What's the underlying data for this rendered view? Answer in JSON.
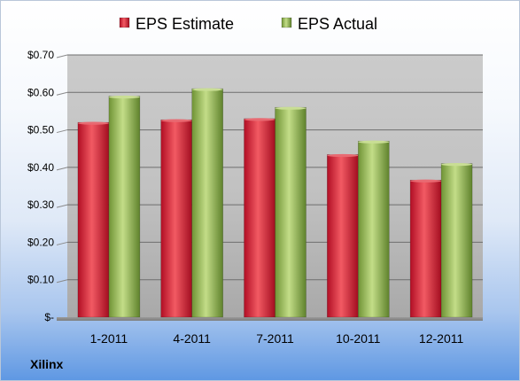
{
  "company": "Xilinx",
  "chart_data": {
    "type": "bar",
    "title": "",
    "xlabel": "",
    "ylabel": "",
    "categories": [
      "1-2011",
      "4-2011",
      "7-2011",
      "10-2011",
      "12-2011"
    ],
    "series": [
      {
        "name": "EPS Estimate",
        "values": [
          0.52,
          0.527,
          0.53,
          0.434,
          0.366
        ],
        "color": "#c8102e"
      },
      {
        "name": "EPS Actual",
        "values": [
          0.59,
          0.61,
          0.56,
          0.47,
          0.41
        ],
        "color": "#8db04a"
      }
    ],
    "ylim": [
      0,
      0.7
    ],
    "yticks": [
      0,
      0.1,
      0.2,
      0.3,
      0.4,
      0.5,
      0.6,
      0.7
    ],
    "ytick_labels": [
      "$-",
      "$0.10",
      "$0.20",
      "$0.30",
      "$0.40",
      "$0.50",
      "$0.60",
      "$0.70"
    ],
    "legend_position": "top",
    "grid": true
  }
}
